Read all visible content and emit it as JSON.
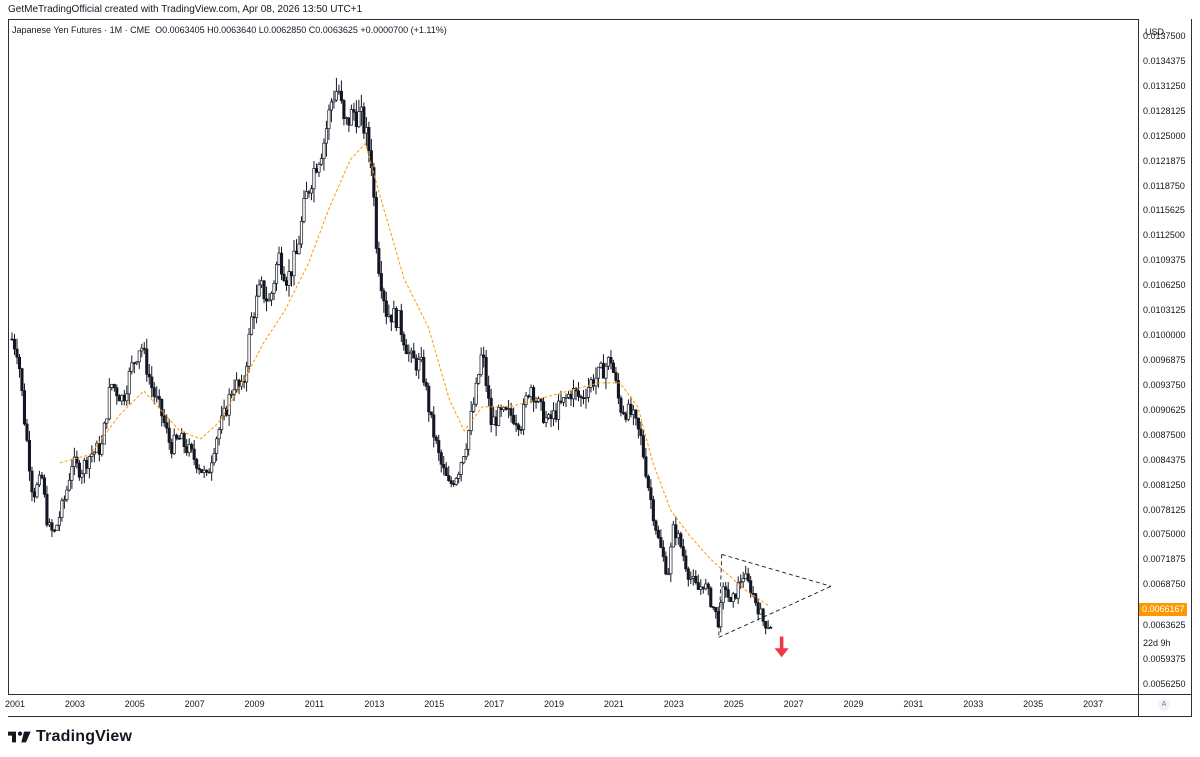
{
  "header": {
    "attribution": "GetMeTradingOfficial created with TradingView.com, Apr 08, 2026 13:50 UTC+1"
  },
  "legend": {
    "symbol": "Japanese Yen Futures · 1M · CME",
    "open": "O0.0063405",
    "high": "H0.0063640",
    "low": "L0.0062850",
    "close": "C0.0063625",
    "change": "+0.0000700 (+1.11%)"
  },
  "price_axis": {
    "currency": "USD",
    "current_price_label": "0.0066167",
    "countdown": "22d 9h",
    "auto_label": "A"
  },
  "brand": {
    "name": "TradingView"
  },
  "colors": {
    "candle": "#131722",
    "moving_average": "#ff9800",
    "pattern_lines": "#131722",
    "arrow": "#f23645",
    "price_badge": "#ff9800"
  },
  "chart_data": {
    "type": "candlestick",
    "timeframe": "1M",
    "xlim": [
      2000.8,
      2038.5
    ],
    "ylim": [
      0.0055,
      0.01395
    ],
    "yticks": [
      "0.0137500",
      "0.0134375",
      "0.0131250",
      "0.0128125",
      "0.0125000",
      "0.0121875",
      "0.0118750",
      "0.0115625",
      "0.0112500",
      "0.0109375",
      "0.0106250",
      "0.0103125",
      "0.0100000",
      "0.0096875",
      "0.0093750",
      "0.0090625",
      "0.0087500",
      "0.0084375",
      "0.0081250",
      "0.0078125",
      "0.0075000",
      "0.0071875",
      "0.0068750",
      "0.0065625",
      "0.0063625",
      "0.0059375",
      "0.0056250"
    ],
    "xticks": [
      "2001",
      "2003",
      "2005",
      "2007",
      "2009",
      "2011",
      "2013",
      "2015",
      "2017",
      "2019",
      "2021",
      "2023",
      "2025",
      "2027",
      "2029",
      "2031",
      "2033",
      "2035",
      "2037"
    ],
    "price_path": [
      [
        2000.9,
        0.00995
      ],
      [
        2001.1,
        0.0098
      ],
      [
        2001.3,
        0.009
      ],
      [
        2001.6,
        0.008
      ],
      [
        2001.9,
        0.0082
      ],
      [
        2002.1,
        0.0076
      ],
      [
        2002.3,
        0.0075
      ],
      [
        2002.7,
        0.008
      ],
      [
        2002.9,
        0.0084
      ],
      [
        2003.2,
        0.0083
      ],
      [
        2003.5,
        0.0085
      ],
      [
        2003.9,
        0.0086
      ],
      [
        2004.2,
        0.0094
      ],
      [
        2004.6,
        0.0092
      ],
      [
        2004.9,
        0.0096
      ],
      [
        2005.2,
        0.0099
      ],
      [
        2005.6,
        0.0093
      ],
      [
        2005.9,
        0.009
      ],
      [
        2006.2,
        0.0086
      ],
      [
        2006.5,
        0.0087
      ],
      [
        2006.9,
        0.0085
      ],
      [
        2007.1,
        0.0084
      ],
      [
        2007.4,
        0.0082
      ],
      [
        2007.7,
        0.0087
      ],
      [
        2008.0,
        0.009
      ],
      [
        2008.3,
        0.0094
      ],
      [
        2008.6,
        0.0093
      ],
      [
        2008.9,
        0.0102
      ],
      [
        2009.2,
        0.0106
      ],
      [
        2009.5,
        0.0104
      ],
      [
        2009.8,
        0.011
      ],
      [
        2010.1,
        0.0107
      ],
      [
        2010.4,
        0.011
      ],
      [
        2010.7,
        0.0117
      ],
      [
        2011.0,
        0.0121
      ],
      [
        2011.3,
        0.0124
      ],
      [
        2011.6,
        0.013
      ],
      [
        2011.8,
        0.0131
      ],
      [
        2012.0,
        0.0126
      ],
      [
        2012.3,
        0.0128
      ],
      [
        2012.6,
        0.0127
      ],
      [
        2012.9,
        0.0122
      ],
      [
        2013.1,
        0.011
      ],
      [
        2013.4,
        0.0103
      ],
      [
        2013.8,
        0.0102
      ],
      [
        2014.2,
        0.0097
      ],
      [
        2014.6,
        0.0096
      ],
      [
        2014.9,
        0.0089
      ],
      [
        2015.2,
        0.0084
      ],
      [
        2015.5,
        0.0081
      ],
      [
        2015.8,
        0.0083
      ],
      [
        2016.1,
        0.0087
      ],
      [
        2016.4,
        0.0093
      ],
      [
        2016.6,
        0.0098
      ],
      [
        2016.9,
        0.0089
      ],
      [
        2017.2,
        0.009
      ],
      [
        2017.6,
        0.009
      ],
      [
        2017.9,
        0.0089
      ],
      [
        2018.2,
        0.0094
      ],
      [
        2018.5,
        0.0091
      ],
      [
        2018.8,
        0.0089
      ],
      [
        2019.2,
        0.0091
      ],
      [
        2019.6,
        0.0093
      ],
      [
        2019.9,
        0.0092
      ],
      [
        2020.2,
        0.0094
      ],
      [
        2020.5,
        0.0095
      ],
      [
        2020.9,
        0.0097
      ],
      [
        2021.2,
        0.0091
      ],
      [
        2021.6,
        0.009
      ],
      [
        2021.9,
        0.0087
      ],
      [
        2022.2,
        0.008
      ],
      [
        2022.5,
        0.0074
      ],
      [
        2022.8,
        0.007
      ],
      [
        2023.0,
        0.0076
      ],
      [
        2023.2,
        0.0074
      ],
      [
        2023.5,
        0.007
      ],
      [
        2023.8,
        0.0068
      ],
      [
        2024.0,
        0.0069
      ],
      [
        2024.3,
        0.0066
      ],
      [
        2024.5,
        0.0064
      ],
      [
        2024.7,
        0.0069
      ],
      [
        2024.9,
        0.0066
      ],
      [
        2025.1,
        0.0068
      ],
      [
        2025.3,
        0.007
      ],
      [
        2025.6,
        0.0068
      ],
      [
        2025.8,
        0.0066
      ],
      [
        2026.0,
        0.0064
      ],
      [
        2026.25,
        0.00636
      ]
    ],
    "moving_average": [
      [
        2002.5,
        0.0084
      ],
      [
        2003.5,
        0.0085
      ],
      [
        2004.5,
        0.009
      ],
      [
        2005.3,
        0.0093
      ],
      [
        2006.5,
        0.0088
      ],
      [
        2007.2,
        0.0087
      ],
      [
        2007.8,
        0.0089
      ],
      [
        2008.6,
        0.0094
      ],
      [
        2009.3,
        0.0099
      ],
      [
        2010.0,
        0.0103
      ],
      [
        2010.8,
        0.0109
      ],
      [
        2011.5,
        0.0116
      ],
      [
        2012.2,
        0.0122
      ],
      [
        2012.7,
        0.0124
      ],
      [
        2013.3,
        0.0116
      ],
      [
        2014.0,
        0.0107
      ],
      [
        2014.8,
        0.0101
      ],
      [
        2015.5,
        0.0092
      ],
      [
        2016.0,
        0.0088
      ],
      [
        2016.6,
        0.0091
      ],
      [
        2017.5,
        0.0091
      ],
      [
        2018.5,
        0.0092
      ],
      [
        2019.5,
        0.0093
      ],
      [
        2020.5,
        0.0094
      ],
      [
        2021.2,
        0.0094
      ],
      [
        2021.8,
        0.0091
      ],
      [
        2022.3,
        0.0084
      ],
      [
        2022.9,
        0.0078
      ],
      [
        2023.5,
        0.0075
      ],
      [
        2024.2,
        0.0072
      ],
      [
        2024.8,
        0.007
      ],
      [
        2025.4,
        0.0068
      ],
      [
        2026.2,
        0.0066
      ]
    ],
    "triangle": {
      "upper": [
        [
          2024.6,
          0.00725
        ],
        [
          2028.25,
          0.00685
        ]
      ],
      "lower": [
        [
          2024.5,
          0.00621
        ],
        [
          2028.25,
          0.00685
        ]
      ]
    },
    "annotations": [
      {
        "type": "arrow-down",
        "x": 2026.6,
        "y_from": 0.00622,
        "y_to": 0.00596
      }
    ]
  }
}
